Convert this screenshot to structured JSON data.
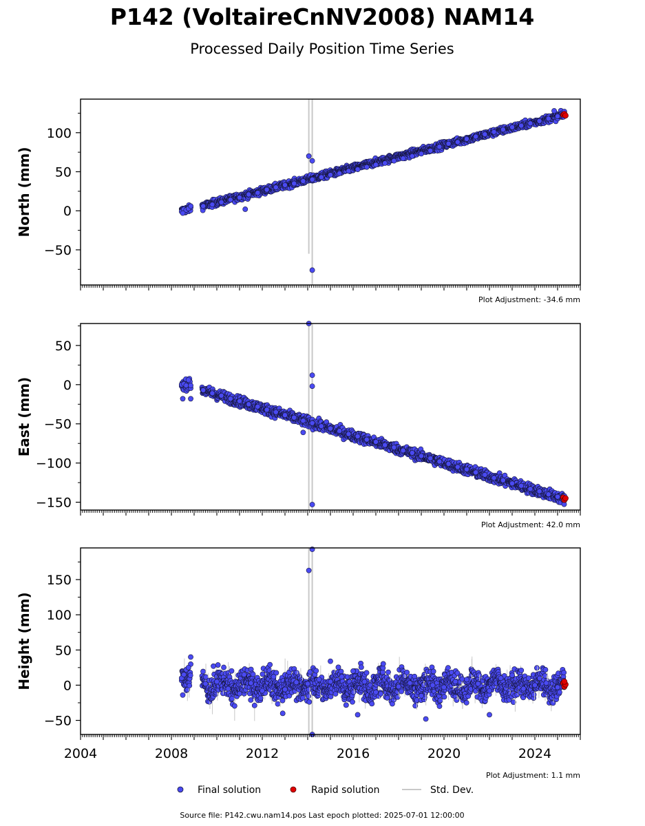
{
  "header": {
    "title": "P142 (VoltaireCnNV2008) NAM14",
    "subtitle": "Processed Daily Position Time Series"
  },
  "footer": {
    "source_text": "Source file: P142.cwu.nam14.pos  Last epoch plotted: 2025-07-01 12:00:00"
  },
  "legend": {
    "final_label": "Final solution",
    "rapid_label": "Rapid solution",
    "std_label": "Std. Dev."
  },
  "colors": {
    "final": "#4a4af2",
    "final_edge": "#15153a",
    "rapid": "#e00000",
    "std": "#c8c8c8"
  },
  "chart_data": [
    {
      "type": "scatter",
      "panel": "north",
      "ylabel": "North (mm)",
      "adjustment_text": "Plot Adjustment: -34.6 mm",
      "xlim": [
        2004.0,
        2026.0
      ],
      "ylim": [
        -95,
        143
      ],
      "yticks": [
        -50,
        0,
        50,
        100
      ],
      "xticks": [
        2004,
        2008,
        2012,
        2016,
        2020,
        2024
      ],
      "show_xtick_labels": false,
      "trend": {
        "segments": [
          {
            "x": [
              2008.45,
              2008.85
            ],
            "y": [
              0,
              3
            ]
          },
          {
            "x": [
              2009.35,
              2025.3
            ],
            "y": [
              6,
              123
            ]
          }
        ]
      },
      "noise": 2.2,
      "final_series": [
        [
          2008.45,
          -1
        ],
        [
          2008.55,
          2
        ],
        [
          2008.65,
          1
        ],
        [
          2008.75,
          3
        ],
        [
          2008.85,
          6
        ],
        [
          2008.5,
          -3
        ],
        [
          2009.4,
          6
        ],
        [
          2009.8,
          8
        ],
        [
          2010.2,
          11
        ],
        [
          2010.6,
          14
        ],
        [
          2011.0,
          17
        ],
        [
          2011.4,
          21
        ],
        [
          2011.8,
          23
        ],
        [
          2012.2,
          27
        ],
        [
          2012.6,
          30
        ],
        [
          2013.0,
          33
        ],
        [
          2013.4,
          35
        ],
        [
          2013.8,
          38
        ],
        [
          2014.2,
          40
        ],
        [
          2014.6,
          43
        ],
        [
          2015.0,
          46
        ],
        [
          2015.4,
          48
        ],
        [
          2015.8,
          51
        ],
        [
          2016.2,
          53
        ],
        [
          2016.6,
          56
        ],
        [
          2017.0,
          59
        ],
        [
          2017.4,
          61
        ],
        [
          2017.8,
          64
        ],
        [
          2018.2,
          67
        ],
        [
          2018.6,
          70
        ],
        [
          2019.0,
          73
        ],
        [
          2019.4,
          77
        ],
        [
          2019.8,
          82
        ],
        [
          2020.2,
          86
        ],
        [
          2020.6,
          88
        ],
        [
          2021.0,
          92
        ],
        [
          2021.4,
          95
        ],
        [
          2021.8,
          98
        ],
        [
          2022.2,
          101
        ],
        [
          2022.6,
          104
        ],
        [
          2023.0,
          107
        ],
        [
          2023.4,
          109
        ],
        [
          2023.8,
          112
        ],
        [
          2024.2,
          115
        ],
        [
          2024.6,
          118
        ],
        [
          2025.0,
          121
        ],
        [
          2011.25,
          2
        ],
        [
          2014.05,
          70
        ],
        [
          2014.2,
          64
        ],
        [
          2014.2,
          -76
        ],
        [
          2024.85,
          128
        ]
      ],
      "rapid_series": [
        [
          2025.25,
          123
        ],
        [
          2025.3,
          124
        ],
        [
          2025.35,
          122
        ]
      ],
      "std_spikes": [
        {
          "x": 2014.05,
          "y1": -55,
          "y2": 143
        },
        {
          "x": 2014.2,
          "y1": -95,
          "y2": 143
        }
      ]
    },
    {
      "type": "scatter",
      "panel": "east",
      "ylabel": "East (mm)",
      "adjustment_text": "Plot Adjustment: 42.0 mm",
      "xlim": [
        2004.0,
        2026.0
      ],
      "ylim": [
        -160,
        78
      ],
      "yticks": [
        -150,
        -100,
        -50,
        0,
        50
      ],
      "xticks": [
        2004,
        2008,
        2012,
        2016,
        2020,
        2024
      ],
      "show_xtick_labels": false,
      "trend": {
        "segments": [
          {
            "x": [
              2008.45,
              2008.85
            ],
            "y": [
              0,
              0
            ]
          },
          {
            "x": [
              2009.35,
              2025.3
            ],
            "y": [
              -7,
              -146
            ]
          }
        ]
      },
      "noise": 3.2,
      "final_series": [
        [
          2008.45,
          0
        ],
        [
          2008.55,
          1
        ],
        [
          2008.65,
          -1
        ],
        [
          2008.75,
          6
        ],
        [
          2008.85,
          -1
        ],
        [
          2008.5,
          -18
        ],
        [
          2008.85,
          -18
        ],
        [
          2009.4,
          -7
        ],
        [
          2009.8,
          -11
        ],
        [
          2010.2,
          -14
        ],
        [
          2010.6,
          -18
        ],
        [
          2011.0,
          -21
        ],
        [
          2011.4,
          -25
        ],
        [
          2011.8,
          -28
        ],
        [
          2012.2,
          -32
        ],
        [
          2012.6,
          -35
        ],
        [
          2013.0,
          -39
        ],
        [
          2013.4,
          -42
        ],
        [
          2013.8,
          -46
        ],
        [
          2014.2,
          -49
        ],
        [
          2014.6,
          -53
        ],
        [
          2015.0,
          -56
        ],
        [
          2015.4,
          -59
        ],
        [
          2015.8,
          -63
        ],
        [
          2016.2,
          -66
        ],
        [
          2016.6,
          -70
        ],
        [
          2017.0,
          -73
        ],
        [
          2017.4,
          -77
        ],
        [
          2017.8,
          -80
        ],
        [
          2018.2,
          -84
        ],
        [
          2018.6,
          -87
        ],
        [
          2019.0,
          -91
        ],
        [
          2019.4,
          -94
        ],
        [
          2019.8,
          -98
        ],
        [
          2020.2,
          -101
        ],
        [
          2020.6,
          -105
        ],
        [
          2021.0,
          -108
        ],
        [
          2021.4,
          -112
        ],
        [
          2021.8,
          -115
        ],
        [
          2022.2,
          -119
        ],
        [
          2022.6,
          -122
        ],
        [
          2023.0,
          -126
        ],
        [
          2023.4,
          -129
        ],
        [
          2023.8,
          -133
        ],
        [
          2024.2,
          -136
        ],
        [
          2024.6,
          -140
        ],
        [
          2025.0,
          -143
        ],
        [
          2014.05,
          78
        ],
        [
          2014.2,
          12
        ],
        [
          2014.2,
          -2
        ],
        [
          2014.2,
          -153
        ],
        [
          2013.8,
          -61
        ]
      ],
      "rapid_series": [
        [
          2025.25,
          -144
        ],
        [
          2025.3,
          -147
        ],
        [
          2025.35,
          -145
        ]
      ],
      "std_spikes": [
        {
          "x": 2014.05,
          "y1": -160,
          "y2": 78
        },
        {
          "x": 2014.2,
          "y1": -160,
          "y2": 78
        }
      ]
    },
    {
      "type": "scatter",
      "panel": "height",
      "ylabel": "Height (mm)",
      "adjustment_text": "Plot Adjustment: 1.1 mm",
      "xlim": [
        2004.0,
        2026.0
      ],
      "ylim": [
        -70,
        195
      ],
      "yticks": [
        -50,
        0,
        50,
        100,
        150
      ],
      "xticks": [
        2004,
        2008,
        2012,
        2016,
        2020,
        2024
      ],
      "show_xtick_labels": true,
      "trend": {
        "segments": [
          {
            "x": [
              2008.45,
              2008.85
            ],
            "y": [
              8,
              22
            ]
          },
          {
            "x": [
              2009.35,
              2025.3
            ],
            "y": [
              0,
              0
            ]
          }
        ]
      },
      "noise": 10,
      "final_series": [
        [
          2008.45,
          10
        ],
        [
          2008.55,
          15
        ],
        [
          2008.65,
          22
        ],
        [
          2008.75,
          25
        ],
        [
          2008.85,
          40
        ],
        [
          2008.5,
          -14
        ],
        [
          2009.5,
          2
        ],
        [
          2010.0,
          5
        ],
        [
          2010.5,
          -5
        ],
        [
          2011.0,
          -12
        ],
        [
          2011.5,
          3
        ],
        [
          2012.0,
          -8
        ],
        [
          2012.5,
          12
        ],
        [
          2013.0,
          -6
        ],
        [
          2013.5,
          4
        ],
        [
          2014.0,
          2
        ],
        [
          2014.5,
          8
        ],
        [
          2015.0,
          5
        ],
        [
          2015.5,
          12
        ],
        [
          2016.0,
          20
        ],
        [
          2016.5,
          5
        ],
        [
          2017.0,
          -10
        ],
        [
          2017.5,
          -18
        ],
        [
          2018.0,
          -2
        ],
        [
          2018.5,
          3
        ],
        [
          2019.0,
          -15
        ],
        [
          2019.5,
          0
        ],
        [
          2020.0,
          -3
        ],
        [
          2020.5,
          5
        ],
        [
          2021.0,
          8
        ],
        [
          2021.5,
          2
        ],
        [
          2022.0,
          -8
        ],
        [
          2022.5,
          10
        ],
        [
          2023.0,
          14
        ],
        [
          2023.5,
          -5
        ],
        [
          2024.0,
          0
        ],
        [
          2024.5,
          3
        ],
        [
          2025.0,
          -3
        ],
        [
          2014.05,
          163
        ],
        [
          2014.2,
          193
        ],
        [
          2014.2,
          -70
        ],
        [
          2015.0,
          34
        ],
        [
          2016.2,
          -42
        ],
        [
          2019.2,
          -48
        ],
        [
          2022.0,
          -42
        ],
        [
          2012.9,
          -40
        ],
        [
          2011.2,
          15
        ],
        [
          2009.85,
          27
        ]
      ],
      "rapid_series": [
        [
          2025.25,
          3
        ],
        [
          2025.3,
          -2
        ],
        [
          2025.35,
          1
        ],
        [
          2025.3,
          5
        ]
      ],
      "std_spikes": [
        {
          "x": 2014.05,
          "y1": -70,
          "y2": 195
        },
        {
          "x": 2014.2,
          "y1": -70,
          "y2": 195
        }
      ]
    }
  ]
}
